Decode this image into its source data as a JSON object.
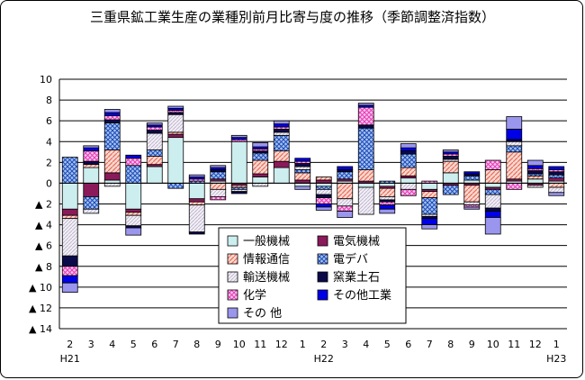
{
  "chart_data": {
    "type": "bar",
    "stacked": true,
    "title": "三重県鉱工業生産の業種別前月比寄与度の推移（季節調整済指数）",
    "xlabel": "",
    "ylabel": "",
    "ylim": [
      -14,
      10
    ],
    "yticks": [
      {
        "value": 10,
        "label": "10"
      },
      {
        "value": 8,
        "label": "8"
      },
      {
        "value": 6,
        "label": "6"
      },
      {
        "value": 4,
        "label": "4"
      },
      {
        "value": 2,
        "label": "2"
      },
      {
        "value": 0,
        "label": "0"
      },
      {
        "value": -2,
        "label": "▲ 2"
      },
      {
        "value": -4,
        "label": "▲ 4"
      },
      {
        "value": -6,
        "label": "▲ 6"
      },
      {
        "value": -8,
        "label": "▲ 8"
      },
      {
        "value": -10,
        "label": "▲ 10"
      },
      {
        "value": -12,
        "label": "▲ 12"
      },
      {
        "value": -14,
        "label": "▲ 14"
      }
    ],
    "grid": "horizontal",
    "legend_position": "inside-bottom-center",
    "categories": [
      "2",
      "3",
      "4",
      "5",
      "6",
      "7",
      "8",
      "9",
      "10",
      "11",
      "12",
      "1",
      "2",
      "3",
      "4",
      "5",
      "6",
      "7",
      "8",
      "9",
      "10",
      "11",
      "12",
      "1"
    ],
    "year_labels": [
      {
        "index": 0,
        "label": "H21"
      },
      {
        "index": 12,
        "label": "H22"
      },
      {
        "index": 23,
        "label": "H23"
      }
    ],
    "series": [
      {
        "name": "一般機械",
        "color": "#cdeeee",
        "pattern": "plain",
        "values": [
          -2.5,
          1.5,
          0.3,
          -2.5,
          1.6,
          4.4,
          -1.5,
          0.2,
          4.0,
          0.6,
          1.5,
          -0.3,
          -0.3,
          0.2,
          -0.4,
          -0.3,
          0.5,
          -0.6,
          1.0,
          0.3,
          -0.4,
          0.2,
          0.4,
          0.2
        ]
      },
      {
        "name": "電気機械",
        "color": "#8b1a5a",
        "pattern": "plain",
        "values": [
          -0.6,
          -1.3,
          0.7,
          -0.3,
          0.2,
          0.3,
          -0.3,
          0.2,
          -0.2,
          0.3,
          0.6,
          0.3,
          0.3,
          0.2,
          0.2,
          -0.2,
          0.2,
          -0.2,
          -0.2,
          -0.2,
          -0.2,
          0.2,
          -0.2,
          0.3
        ]
      },
      {
        "name": "情報通信",
        "color": "#f0a898",
        "pattern": "hatch",
        "values": [
          -0.3,
          0.3,
          2.2,
          -0.3,
          0.8,
          0.2,
          -0.3,
          -0.6,
          -0.2,
          1.3,
          1.0,
          0.7,
          0.3,
          -1.5,
          1.1,
          -0.8,
          0.8,
          -0.6,
          1.1,
          -1.6,
          1.3,
          2.6,
          0.3,
          -0.4
        ]
      },
      {
        "name": "電デバ",
        "color": "#2a5ac8",
        "pattern": "dots",
        "values": [
          2.5,
          -1.2,
          2.6,
          1.7,
          0.6,
          -0.5,
          0.2,
          0.7,
          -0.2,
          0.7,
          1.5,
          0.3,
          -0.3,
          0.7,
          4.0,
          0.2,
          1.3,
          -1.6,
          -0.9,
          0.4,
          -0.5,
          0.6,
          0.2,
          0.3
        ]
      },
      {
        "name": "輸送機械",
        "color": "#e4e0ec",
        "pattern": "lines",
        "values": [
          -3.6,
          -0.4,
          -0.3,
          -1.0,
          1.6,
          1.7,
          -2.6,
          -0.7,
          -0.2,
          -0.3,
          0.3,
          0.3,
          -0.5,
          -0.7,
          -2.6,
          -0.3,
          -0.6,
          -0.2,
          0.2,
          -0.3,
          -1.3,
          0.4,
          -0.2,
          -0.5
        ]
      },
      {
        "name": "窯業土石",
        "color": "#0a0a4a",
        "pattern": "plain",
        "values": [
          -1.0,
          0.3,
          0.3,
          -0.2,
          0.3,
          0.2,
          -0.2,
          0.2,
          -0.2,
          0.2,
          0.3,
          0.3,
          -0.3,
          0.2,
          0.3,
          -0.2,
          0.3,
          -0.2,
          0.3,
          0.2,
          -0.3,
          0.2,
          0.3,
          0.3
        ]
      },
      {
        "name": "化学",
        "color": "#f070c8",
        "pattern": "dots",
        "values": [
          -0.9,
          1.0,
          0.4,
          0.7,
          0.3,
          0.2,
          0.2,
          -0.3,
          0.2,
          0.2,
          0.2,
          0.2,
          -0.6,
          -0.5,
          1.7,
          -0.3,
          -0.6,
          0.2,
          0.2,
          -0.2,
          0.9,
          -0.6,
          0.2,
          0.2
        ]
      },
      {
        "name": "その他工業",
        "color": "#0000e6",
        "pattern": "plain",
        "values": [
          -0.7,
          0.3,
          0.3,
          0.3,
          0.2,
          0.2,
          0.2,
          0.2,
          0.2,
          0.2,
          0.3,
          0.3,
          -0.3,
          0.3,
          0.2,
          -0.4,
          0.3,
          -0.6,
          0.2,
          0.2,
          -0.6,
          1.0,
          0.3,
          0.3
        ]
      },
      {
        "name": "その 他",
        "color": "#9a96ee",
        "pattern": "plain",
        "values": [
          -0.9,
          0.2,
          0.3,
          -0.7,
          0.2,
          0.2,
          0.2,
          0.2,
          0.2,
          0.4,
          0.3,
          -0.3,
          -0.3,
          -0.6,
          0.2,
          -0.4,
          0.4,
          -0.4,
          0.2,
          -0.2,
          -1.6,
          1.2,
          0.5,
          -0.3
        ]
      }
    ]
  }
}
